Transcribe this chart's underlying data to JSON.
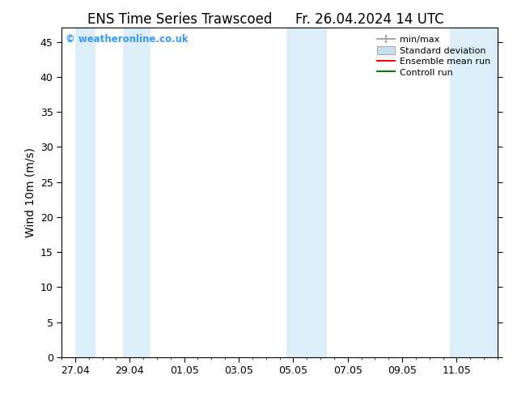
{
  "title_left": "ENS Time Series Trawscoed",
  "title_right": "Fr. 26.04.2024 14 UTC",
  "ylabel": "Wind 10m (m/s)",
  "ylim": [
    0,
    47
  ],
  "yticks": [
    0,
    5,
    10,
    15,
    20,
    25,
    30,
    35,
    40,
    45
  ],
  "x_tick_positions": [
    0,
    2,
    4,
    6,
    8,
    10,
    12,
    14
  ],
  "xlabel_ticks": [
    "27.04",
    "29.04",
    "01.05",
    "03.05",
    "05.05",
    "07.05",
    "09.05",
    "11.05"
  ],
  "xlim": [
    -0.5,
    15.5
  ],
  "background_color": "#ffffff",
  "plot_bg_color": "#ffffff",
  "band_color": "#ddeef8",
  "shaded_regions": [
    [
      0.0,
      0.75
    ],
    [
      1.75,
      2.75
    ],
    [
      7.75,
      9.25
    ],
    [
      13.75,
      15.5
    ]
  ],
  "legend_labels": [
    "min/max",
    "Standard deviation",
    "Ensemble mean run",
    "Controll run"
  ],
  "legend_colors": [
    "#aaaaaa",
    "#c8dff0",
    "red",
    "green"
  ],
  "watermark_text": "© weatheronline.co.uk",
  "watermark_color": "#3399ff",
  "title_fontsize": 12,
  "axis_fontsize": 10,
  "tick_fontsize": 9,
  "legend_fontsize": 8
}
